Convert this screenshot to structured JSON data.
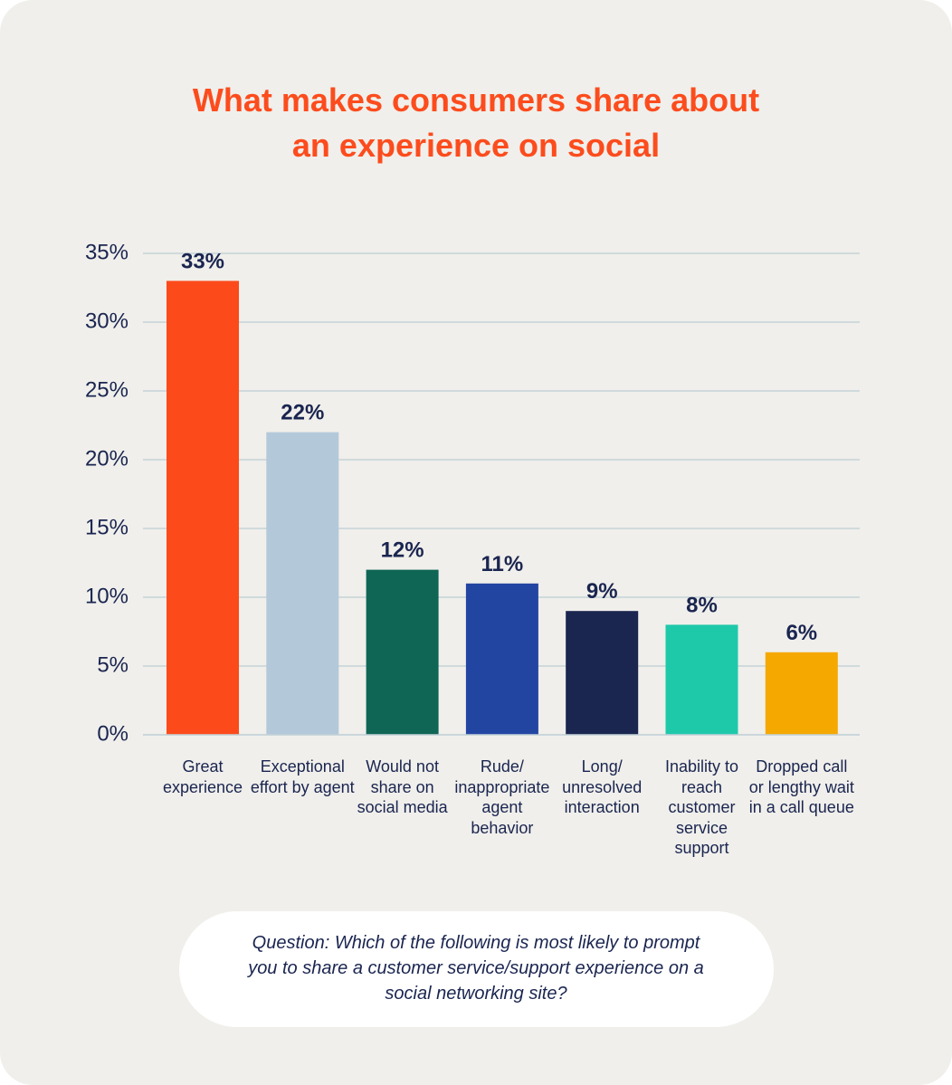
{
  "chart_data": {
    "type": "bar",
    "title": "What makes consumers share about an experience on social",
    "categories": [
      "Great experience",
      "Exceptional effort by agent",
      "Would not share on social media",
      "Rude/ inappropriate agent behavior",
      "Long/ unresolved interaction",
      "Inability to reach customer service support",
      "Dropped call or lengthy wait in a call queue"
    ],
    "values": [
      33,
      22,
      12,
      11,
      9,
      8,
      6
    ],
    "value_labels": [
      "33%",
      "22%",
      "12%",
      "11%",
      "9%",
      "8%",
      "6%"
    ],
    "colors": [
      "#fc4a1a",
      "#b3c9d9",
      "#0f6655",
      "#2345a2",
      "#1a2550",
      "#1ec9aa",
      "#f5a800"
    ],
    "ylim": [
      0,
      35
    ],
    "yticks": [
      {
        "value": 0,
        "label": "0%"
      },
      {
        "value": 5,
        "label": "5%"
      },
      {
        "value": 10,
        "label": "10%"
      },
      {
        "value": 15,
        "label": "15%"
      },
      {
        "value": 20,
        "label": "20%"
      },
      {
        "value": 25,
        "label": "25%"
      },
      {
        "value": 30,
        "label": "30%"
      },
      {
        "value": 35,
        "label": "35%"
      }
    ],
    "grid": true,
    "note": "Question: Which of the following is most likely to prompt you to share a customer service/support experience on a social networking site?"
  }
}
